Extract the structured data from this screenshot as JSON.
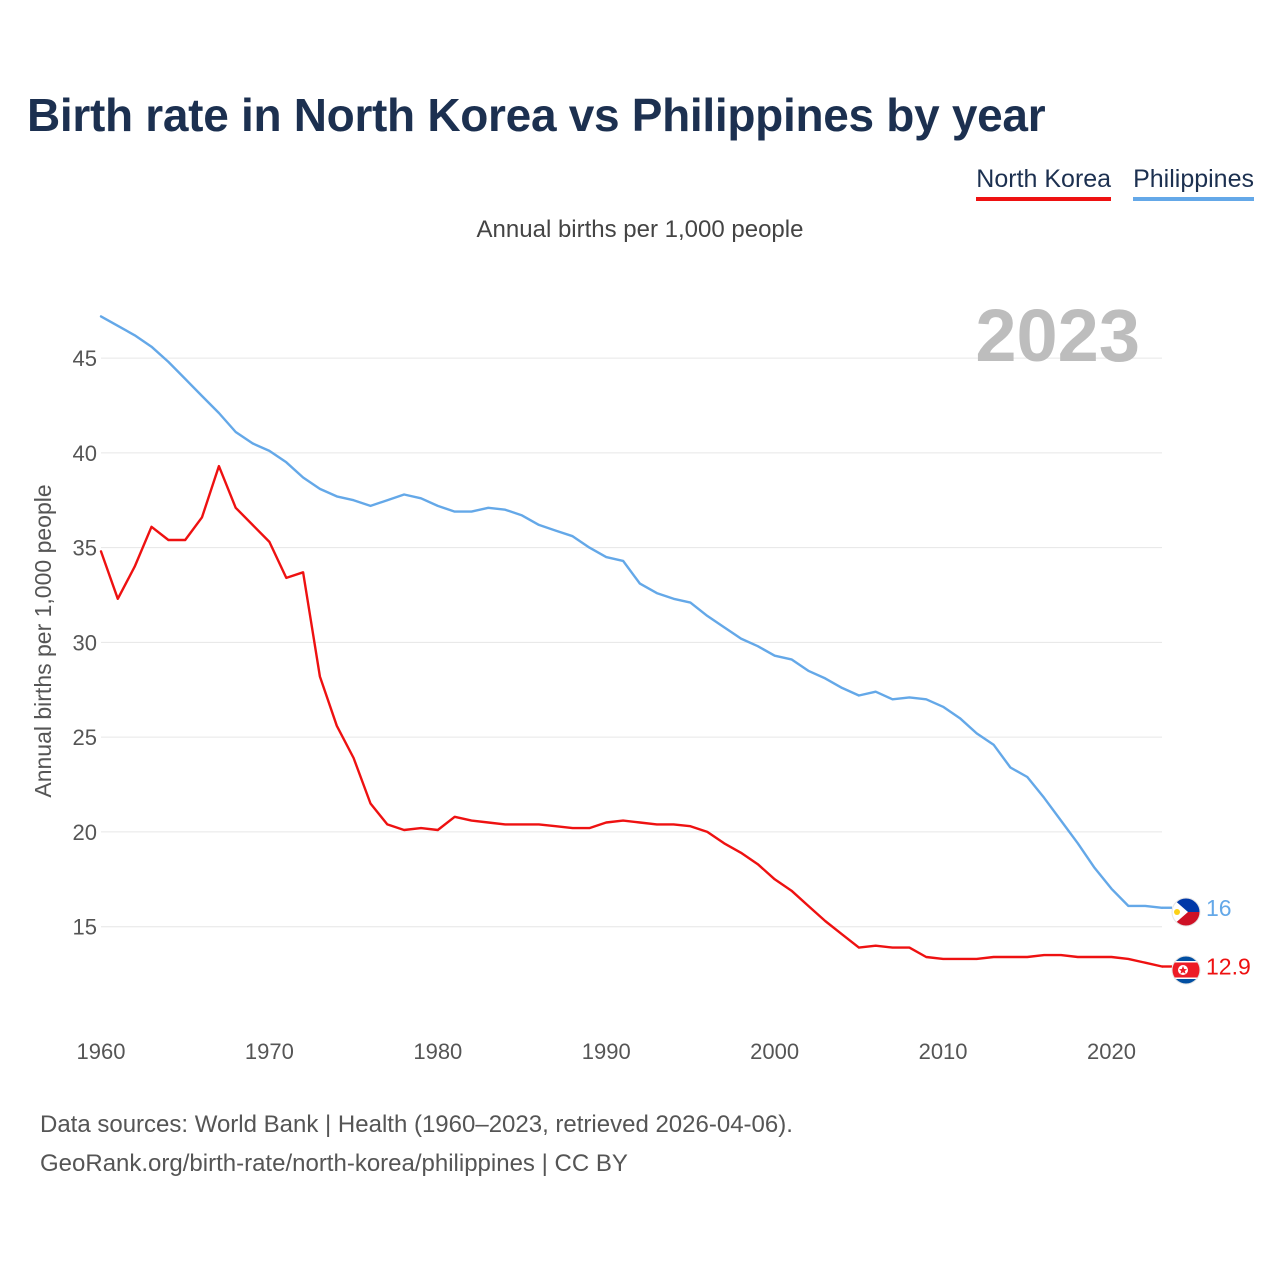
{
  "title": "Birth rate in North Korea vs Philippines by year",
  "subtitle": "Annual births per 1,000 people",
  "legend": [
    {
      "label": "North Korea",
      "color": "#ee1111"
    },
    {
      "label": "Philippines",
      "color": "#64a8e8"
    }
  ],
  "footer": {
    "line1": "Data sources: World Bank | Health (1960–2023, retrieved 2026-04-06).",
    "line2": "GeoRank.org/birth-rate/north-korea/philippines | CC BY"
  },
  "chart_data": {
    "type": "line",
    "title": "Birth rate in North Korea vs Philippines by year",
    "xlabel": "",
    "ylabel": "Annual births per 1,000 people",
    "year_label": "2023",
    "xlim": [
      1960,
      2023
    ],
    "ylim": [
      10.5,
      47.8
    ],
    "x_ticks": [
      1960,
      1970,
      1980,
      1990,
      2000,
      2010,
      2020
    ],
    "y_ticks": [
      15,
      20,
      25,
      30,
      35,
      40,
      45
    ],
    "grid": true,
    "legend_position": "top-right",
    "x": [
      1960,
      1961,
      1962,
      1963,
      1964,
      1965,
      1966,
      1967,
      1968,
      1969,
      1970,
      1971,
      1972,
      1973,
      1974,
      1975,
      1976,
      1977,
      1978,
      1979,
      1980,
      1981,
      1982,
      1983,
      1984,
      1985,
      1986,
      1987,
      1988,
      1989,
      1990,
      1991,
      1992,
      1993,
      1994,
      1995,
      1996,
      1997,
      1998,
      1999,
      2000,
      2001,
      2002,
      2003,
      2004,
      2005,
      2006,
      2007,
      2008,
      2009,
      2010,
      2011,
      2012,
      2013,
      2014,
      2015,
      2016,
      2017,
      2018,
      2019,
      2020,
      2021,
      2022,
      2023
    ],
    "series": [
      {
        "name": "North Korea",
        "color": "#ee1111",
        "end_label": "12.9",
        "values": [
          34.8,
          32.3,
          34.0,
          36.1,
          35.4,
          35.4,
          36.6,
          39.3,
          37.1,
          36.2,
          35.3,
          33.4,
          33.7,
          28.2,
          25.6,
          23.9,
          21.5,
          20.4,
          20.1,
          20.2,
          20.1,
          20.8,
          20.6,
          20.5,
          20.4,
          20.4,
          20.4,
          20.3,
          20.2,
          20.2,
          20.5,
          20.6,
          20.5,
          20.4,
          20.4,
          20.3,
          20.0,
          19.4,
          18.9,
          18.3,
          17.5,
          16.9,
          16.1,
          15.3,
          14.6,
          13.9,
          14.0,
          13.9,
          13.9,
          13.4,
          13.3,
          13.3,
          13.3,
          13.4,
          13.4,
          13.4,
          13.5,
          13.5,
          13.4,
          13.4,
          13.4,
          13.3,
          13.1,
          12.9
        ]
      },
      {
        "name": "Philippines",
        "color": "#64a8e8",
        "end_label": "16",
        "values": [
          47.2,
          46.7,
          46.2,
          45.6,
          44.8,
          43.9,
          43.0,
          42.1,
          41.1,
          40.5,
          40.1,
          39.5,
          38.7,
          38.1,
          37.7,
          37.5,
          37.2,
          37.5,
          37.8,
          37.6,
          37.2,
          36.9,
          36.9,
          37.1,
          37.0,
          36.7,
          36.2,
          35.9,
          35.6,
          35.0,
          34.5,
          34.3,
          33.1,
          32.6,
          32.3,
          32.1,
          31.4,
          30.8,
          30.2,
          29.8,
          29.3,
          29.1,
          28.5,
          28.1,
          27.6,
          27.2,
          27.4,
          27.0,
          27.1,
          27.0,
          26.6,
          26.0,
          25.2,
          24.6,
          23.4,
          22.9,
          21.8,
          20.6,
          19.4,
          18.1,
          17.0,
          16.1,
          16.1,
          16.0
        ]
      }
    ]
  }
}
